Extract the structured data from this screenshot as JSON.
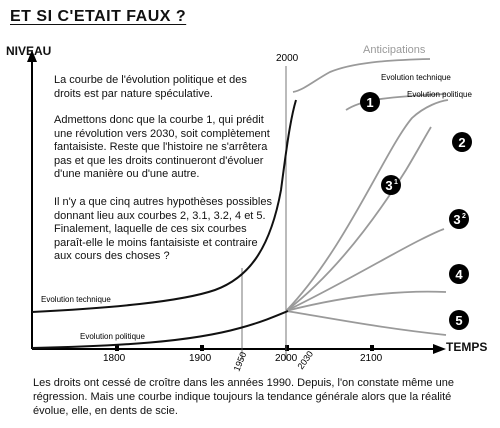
{
  "title": "ET SI C'ETAIT FAUX ?",
  "axes": {
    "y_label": "NIVEAU",
    "x_label": "TEMPS"
  },
  "years": {
    "y1800": "1800",
    "y1900": "1900",
    "y1950": "1950",
    "y2000": "2000",
    "y2000_top": "2000",
    "y2030": "2030",
    "y2100": "2100"
  },
  "text": {
    "p1": "La courbe de l'évolution politique et des droits est par nature spéculative.",
    "p2": "Admettons donc que la courbe 1, qui prédit une révolution vers 2030, soit complètement fantaisiste. Reste que l'histoire ne s'arrêtera pas et que les droits continueront d'évoluer d'une manière ou d'une autre.",
    "p3": "Il n'y a que cinq autres hypothèses possibles donnant lieu aux courbes 2, 3.1, 3.2, 4 et 5. Finalement, laquelle de ces six courbes paraît-elle le moins fantaisiste et contraire aux cours des choses ?"
  },
  "caption": "Les droits ont cessé de croître dans les années 1990. Depuis, l'on constate même une régression. Mais une courbe indique toujours la tendance générale alors que la réalité évolue, elle, en dents de scie.",
  "labels": {
    "anticipations": "Anticipations",
    "evo_tech_top": "Evolution technique",
    "evo_pol_top": "Evolution politique",
    "evo_tech_main": "Evolution technique",
    "evo_pol_main": "Evolution politique"
  },
  "markers": {
    "m1": "1",
    "m2": "2",
    "m31": "3",
    "m31_sup": "1",
    "m32": "3",
    "m32_sup": "2",
    "m4": "4",
    "m5": "5"
  },
  "colors": {
    "curve": "#111111",
    "anticipation": "#9a9a9a",
    "marker": "#000000"
  }
}
